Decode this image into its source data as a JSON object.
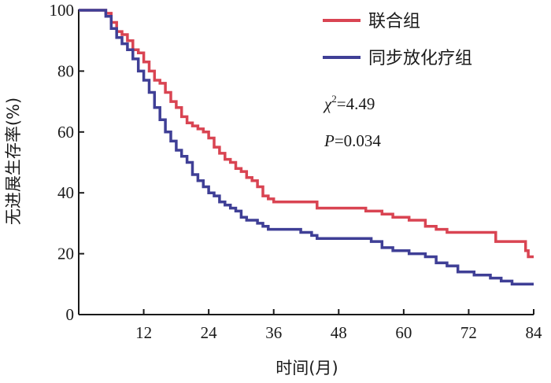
{
  "chart_data": {
    "type": "line",
    "subtype": "kaplan-meier-step",
    "xlabel": "时间(月)",
    "ylabel": "无进展生存率(%)",
    "xlim": [
      0,
      84
    ],
    "ylim": [
      0,
      100
    ],
    "xticks": [
      12,
      24,
      36,
      48,
      60,
      72,
      84
    ],
    "yticks": [
      0,
      20,
      40,
      60,
      80,
      100
    ],
    "grid": false,
    "legend_position": "top-right",
    "annotations": {
      "chi_symbol": "χ",
      "chi_sup": "2",
      "chi_value": "=4.49",
      "p_symbol": "P",
      "p_value": "=0.034"
    },
    "series": [
      {
        "name": "联合组",
        "color": "#d94452",
        "points": [
          [
            0,
            100
          ],
          [
            4,
            100
          ],
          [
            5,
            99
          ],
          [
            6,
            96
          ],
          [
            7,
            93
          ],
          [
            8,
            92
          ],
          [
            9,
            90
          ],
          [
            10,
            87
          ],
          [
            11,
            86
          ],
          [
            12,
            83
          ],
          [
            13,
            80
          ],
          [
            14,
            77
          ],
          [
            15,
            76
          ],
          [
            16,
            73
          ],
          [
            17,
            70
          ],
          [
            18,
            68
          ],
          [
            19,
            65
          ],
          [
            20,
            63
          ],
          [
            21,
            62
          ],
          [
            22,
            61
          ],
          [
            23,
            60
          ],
          [
            24,
            58
          ],
          [
            25,
            55
          ],
          [
            26,
            53
          ],
          [
            27,
            51
          ],
          [
            28,
            50
          ],
          [
            29,
            48
          ],
          [
            30,
            47
          ],
          [
            31,
            45
          ],
          [
            32,
            44
          ],
          [
            33,
            42
          ],
          [
            34,
            39
          ],
          [
            35,
            38
          ],
          [
            36,
            37
          ],
          [
            42,
            37
          ],
          [
            44,
            35
          ],
          [
            52,
            35
          ],
          [
            53,
            34
          ],
          [
            56,
            33
          ],
          [
            58,
            32
          ],
          [
            61,
            31
          ],
          [
            64,
            29
          ],
          [
            66,
            28
          ],
          [
            68,
            27
          ],
          [
            76,
            27
          ],
          [
            77,
            24
          ],
          [
            82,
            24
          ],
          [
            82.5,
            21
          ],
          [
            83,
            19
          ],
          [
            84,
            19
          ]
        ]
      },
      {
        "name": "同步放化疗组",
        "color": "#3f3f96",
        "points": [
          [
            0,
            100
          ],
          [
            4,
            100
          ],
          [
            5,
            98
          ],
          [
            6,
            94
          ],
          [
            7,
            91
          ],
          [
            8,
            89
          ],
          [
            9,
            87
          ],
          [
            10,
            84
          ],
          [
            11,
            80
          ],
          [
            12,
            77
          ],
          [
            13,
            73
          ],
          [
            14,
            68
          ],
          [
            15,
            64
          ],
          [
            16,
            60
          ],
          [
            17,
            57
          ],
          [
            18,
            54
          ],
          [
            19,
            52
          ],
          [
            20,
            50
          ],
          [
            21,
            46
          ],
          [
            22,
            44
          ],
          [
            23,
            42
          ],
          [
            24,
            40
          ],
          [
            25,
            39
          ],
          [
            26,
            37
          ],
          [
            27,
            36
          ],
          [
            28,
            35
          ],
          [
            29,
            34
          ],
          [
            30,
            32
          ],
          [
            31,
            31
          ],
          [
            33,
            30
          ],
          [
            34,
            29
          ],
          [
            35,
            28
          ],
          [
            41,
            27
          ],
          [
            43,
            26
          ],
          [
            44,
            25
          ],
          [
            52,
            25
          ],
          [
            54,
            24
          ],
          [
            56,
            22
          ],
          [
            58,
            21
          ],
          [
            61,
            20
          ],
          [
            64,
            19
          ],
          [
            66,
            17
          ],
          [
            68,
            16
          ],
          [
            70,
            14
          ],
          [
            73,
            13
          ],
          [
            76,
            12
          ],
          [
            78,
            11
          ],
          [
            80,
            10
          ],
          [
            84,
            10
          ]
        ]
      }
    ]
  }
}
